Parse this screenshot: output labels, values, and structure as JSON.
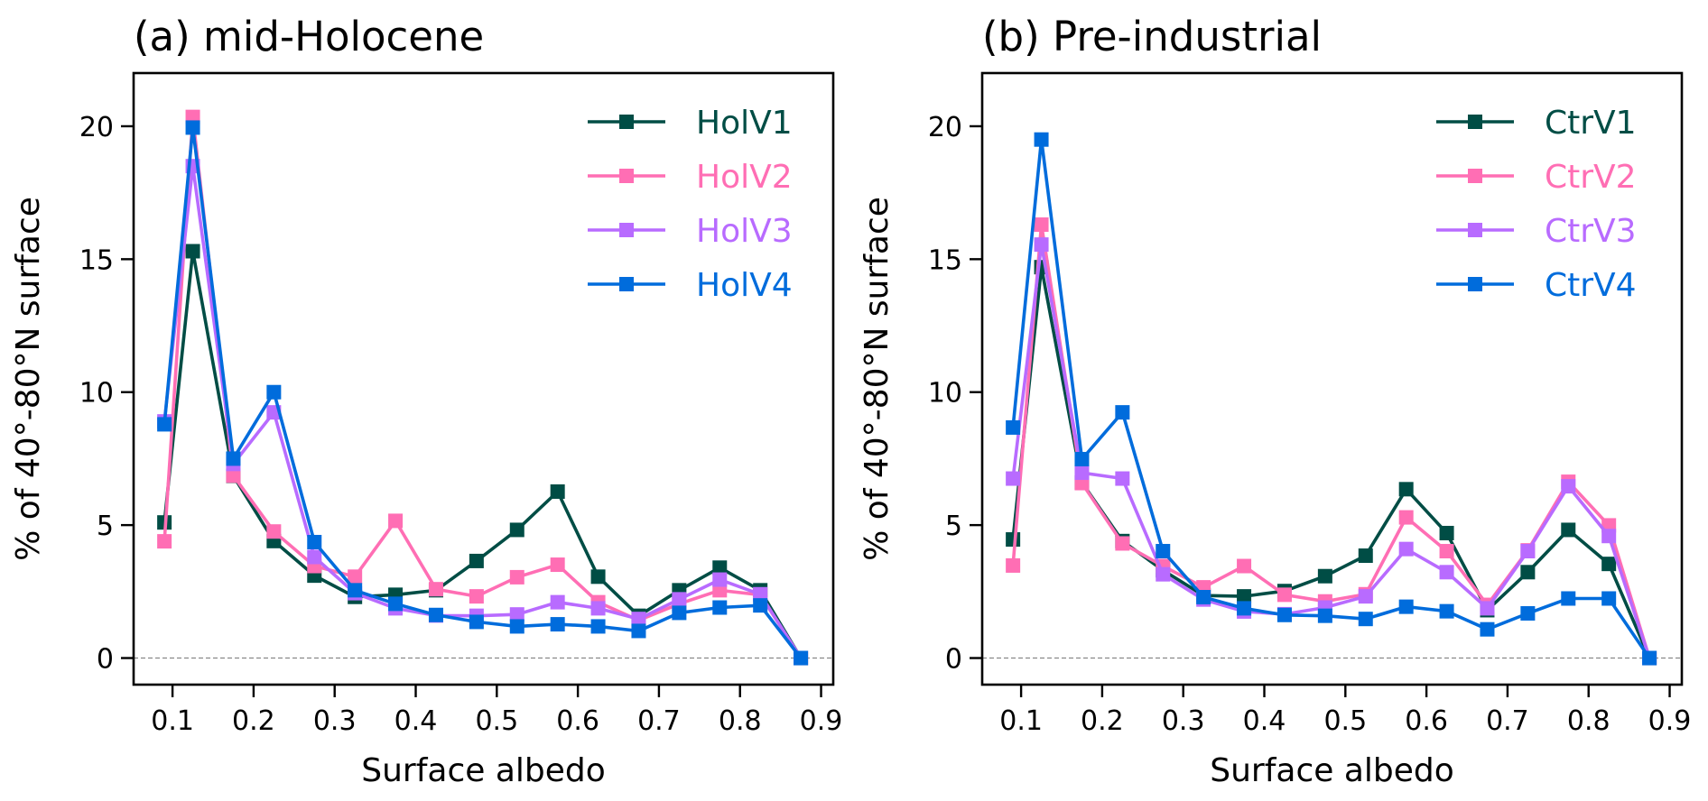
{
  "chart_data": [
    {
      "type": "line",
      "title": "(a) mid-Holocene",
      "xlabel": "Surface albedo",
      "ylabel": "% of 40°-80°N surface",
      "xlim": [
        0.052,
        0.915
      ],
      "ylim": [
        -1,
        22
      ],
      "xticks": [
        0.1,
        0.2,
        0.3,
        0.4,
        0.5,
        0.6,
        0.7,
        0.8,
        0.9
      ],
      "xtick_labels": [
        "0.1",
        "0.2",
        "0.3",
        "0.4",
        "0.5",
        "0.6",
        "0.7",
        "0.8",
        "0.9"
      ],
      "yticks": [
        0,
        5,
        10,
        15,
        20
      ],
      "ytick_labels": [
        "0",
        "5",
        "10",
        "15",
        "20"
      ],
      "reference_line": {
        "y": 0,
        "style": "dashed"
      },
      "grid": false,
      "legend_position": "top-right",
      "x": [
        0.09,
        0.125,
        0.175,
        0.225,
        0.275,
        0.325,
        0.375,
        0.425,
        0.475,
        0.525,
        0.575,
        0.625,
        0.675,
        0.725,
        0.775,
        0.825,
        0.875
      ],
      "series": [
        {
          "name": "HolV1",
          "color": "#004d45",
          "marker": "square",
          "values": [
            5.1,
            15.3,
            6.85,
            4.4,
            3.1,
            2.3,
            2.38,
            2.55,
            3.65,
            4.82,
            6.26,
            3.06,
            1.59,
            2.55,
            3.4,
            2.55,
            0.0
          ]
        },
        {
          "name": "HolV2",
          "color": "#ff6eb4",
          "marker": "square",
          "values": [
            4.39,
            20.35,
            6.86,
            4.76,
            3.46,
            3.06,
            5.16,
            2.59,
            2.32,
            3.04,
            3.51,
            2.1,
            1.42,
            2.04,
            2.55,
            2.38,
            0.0
          ]
        },
        {
          "name": "HolV3",
          "color": "#b86bff",
          "marker": "square",
          "values": [
            8.9,
            18.5,
            7.3,
            9.24,
            3.8,
            2.44,
            1.87,
            1.6,
            1.59,
            1.64,
            2.1,
            1.87,
            1.47,
            2.21,
            2.95,
            2.4,
            0.0
          ]
        },
        {
          "name": "HolV4",
          "color": "#006cdc",
          "marker": "square",
          "values": [
            8.79,
            19.95,
            7.5,
            10.0,
            4.36,
            2.55,
            2.04,
            1.62,
            1.36,
            1.19,
            1.27,
            1.19,
            1.02,
            1.7,
            1.9,
            1.98,
            0.0
          ]
        }
      ]
    },
    {
      "type": "line",
      "title": "(b) Pre-industrial",
      "xlabel": "Surface albedo",
      "ylabel": "% of 40°-80°N surface",
      "xlim": [
        0.052,
        0.915
      ],
      "ylim": [
        -1,
        22
      ],
      "xticks": [
        0.1,
        0.2,
        0.3,
        0.4,
        0.5,
        0.6,
        0.7,
        0.8,
        0.9
      ],
      "xtick_labels": [
        "0.1",
        "0.2",
        "0.3",
        "0.4",
        "0.5",
        "0.6",
        "0.7",
        "0.8",
        "0.9"
      ],
      "yticks": [
        0,
        5,
        10,
        15,
        20
      ],
      "ytick_labels": [
        "0",
        "5",
        "10",
        "15",
        "20"
      ],
      "reference_line": {
        "y": 0,
        "style": "dashed"
      },
      "grid": false,
      "legend_position": "top-right",
      "x": [
        0.09,
        0.125,
        0.175,
        0.225,
        0.275,
        0.325,
        0.375,
        0.425,
        0.475,
        0.525,
        0.575,
        0.625,
        0.675,
        0.725,
        0.775,
        0.825,
        0.875
      ],
      "series": [
        {
          "name": "CtrV1",
          "color": "#004d45",
          "marker": "square",
          "values": [
            4.46,
            14.7,
            6.6,
            4.4,
            3.3,
            2.35,
            2.32,
            2.52,
            3.08,
            3.85,
            6.35,
            4.7,
            1.8,
            3.23,
            4.82,
            3.54,
            0.0
          ]
        },
        {
          "name": "CtrV2",
          "color": "#ff6eb4",
          "marker": "square",
          "values": [
            3.48,
            16.3,
            6.58,
            4.31,
            3.46,
            2.66,
            3.46,
            2.38,
            2.13,
            2.4,
            5.29,
            4.02,
            2.0,
            4.05,
            6.63,
            4.99,
            0.0
          ]
        },
        {
          "name": "CtrV3",
          "color": "#b86bff",
          "marker": "square",
          "values": [
            6.75,
            15.55,
            6.97,
            6.75,
            3.15,
            2.2,
            1.75,
            1.65,
            1.9,
            2.32,
            4.1,
            3.23,
            1.87,
            4.02,
            6.46,
            4.59,
            0.0
          ]
        },
        {
          "name": "CtrV4",
          "color": "#006cdc",
          "marker": "square",
          "values": [
            8.67,
            19.5,
            7.48,
            9.24,
            4.02,
            2.29,
            1.87,
            1.62,
            1.59,
            1.47,
            1.93,
            1.76,
            1.08,
            1.68,
            2.24,
            2.24,
            0.0
          ]
        }
      ]
    }
  ]
}
